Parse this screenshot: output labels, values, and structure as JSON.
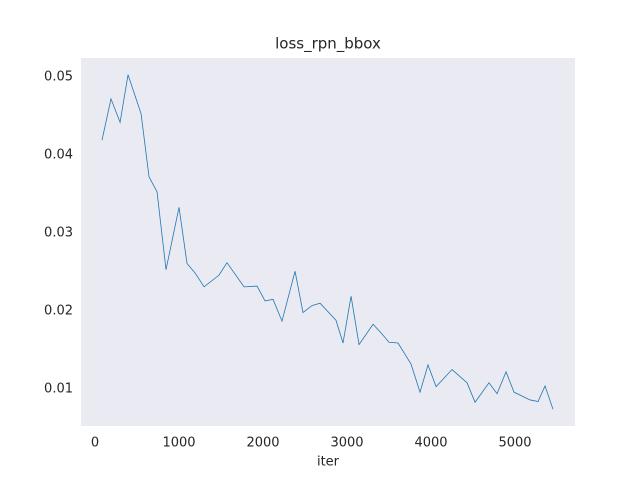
{
  "chart_data": {
    "type": "line",
    "title": "loss_rpn_bbox",
    "x_label": "iter",
    "x": [
      83,
      190,
      298,
      393,
      548,
      643,
      738,
      845,
      1000,
      1095,
      1190,
      1298,
      1476,
      1571,
      1774,
      1929,
      2024,
      2119,
      2226,
      2381,
      2476,
      2583,
      2679,
      2869,
      2952,
      3048,
      3143,
      3310,
      3405,
      3500,
      3607,
      3762,
      3869,
      3964,
      4060,
      4250,
      4429,
      4524,
      4690,
      4786,
      4893,
      4988,
      5179,
      5274,
      5357,
      5452
    ],
    "series": [
      {
        "color": "#1f77b4",
        "values": [
          0.0419,
          0.0472,
          0.0442,
          0.0503,
          0.0453,
          0.0372,
          0.0353,
          0.0253,
          0.0333,
          0.0261,
          0.0249,
          0.0231,
          0.0246,
          0.0262,
          0.0231,
          0.0232,
          0.0213,
          0.0215,
          0.0187,
          0.0251,
          0.0198,
          0.0207,
          0.021,
          0.0188,
          0.0159,
          0.0219,
          0.0157,
          0.0183,
          0.0172,
          0.016,
          0.0159,
          0.0132,
          0.0096,
          0.0131,
          0.0103,
          0.0125,
          0.0108,
          0.0083,
          0.0108,
          0.0094,
          0.0122,
          0.0096,
          0.0086,
          0.0084,
          0.0104,
          0.0074
        ]
      }
    ],
    "xlim": [
      -167,
      5714
    ],
    "ylim": [
      0.00526,
      0.05244
    ],
    "xticks": [
      0,
      1000,
      2000,
      3000,
      4000,
      5000
    ],
    "yticks": [
      0.01,
      0.02,
      0.03,
      0.04,
      0.05
    ],
    "plot_background": "#eaeaf2"
  }
}
